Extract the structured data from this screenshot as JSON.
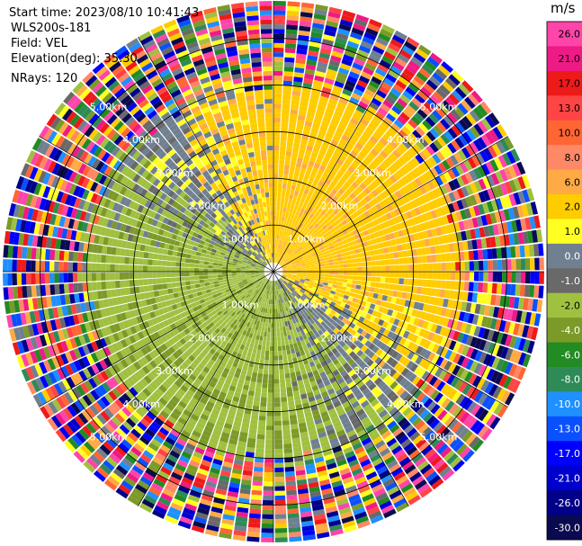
{
  "header": {
    "start_time": "Start time: 2023/08/10 10:41:43",
    "instrument": "WLS200s-181",
    "field": "Field: VEL",
    "elevation": "Elevation(deg): 35.30",
    "nrays": "NRays: 120"
  },
  "chart_data": {
    "type": "heatmap",
    "projection": "polar-ppi",
    "field": "VEL",
    "units": "m/s",
    "n_rays": 120,
    "elevation_deg": 35.3,
    "range_rings_km": [
      1.0,
      2.0,
      3.0,
      4.0,
      5.0
    ],
    "range_ring_labels": [
      "1.00km",
      "2.00km",
      "3.00km",
      "4.00km",
      "5.00km"
    ],
    "max_range_km": 5.8,
    "grid": true,
    "radial_lines_deg": [
      0,
      30,
      60,
      90,
      120,
      150,
      180,
      210,
      240,
      270,
      300,
      330
    ],
    "pattern_summary": {
      "positive_sector_center_deg": 45,
      "positive_value": 3.0,
      "negative_sector_center_deg": 225,
      "negative_value": -2.0,
      "noise_beyond_km": 3.8
    },
    "colorbar": {
      "label": "m/s",
      "ticks": [
        "26.0",
        "21.0",
        "17.0",
        "13.0",
        "10.0",
        "8.0",
        "6.0",
        "2.0",
        "1.0",
        "0.0",
        "-1.0",
        "-2.0",
        "-4.0",
        "-6.0",
        "-8.0",
        "-10.0",
        "-13.0",
        "-17.0",
        "-21.0",
        "-26.0",
        "-30.0"
      ],
      "colors": [
        "#ff44aa",
        "#ee1a86",
        "#ee1a1a",
        "#ff4444",
        "#ff6633",
        "#ff8866",
        "#ffaa44",
        "#ffcc00",
        "#ffff22",
        "#708090",
        "#696969",
        "#a0c040",
        "#7c9a28",
        "#228b22",
        "#2e8b57",
        "#1e90ff",
        "#0a50ff",
        "#0000ff",
        "#0000cc",
        "#000088",
        "#0a0a50"
      ]
    }
  }
}
